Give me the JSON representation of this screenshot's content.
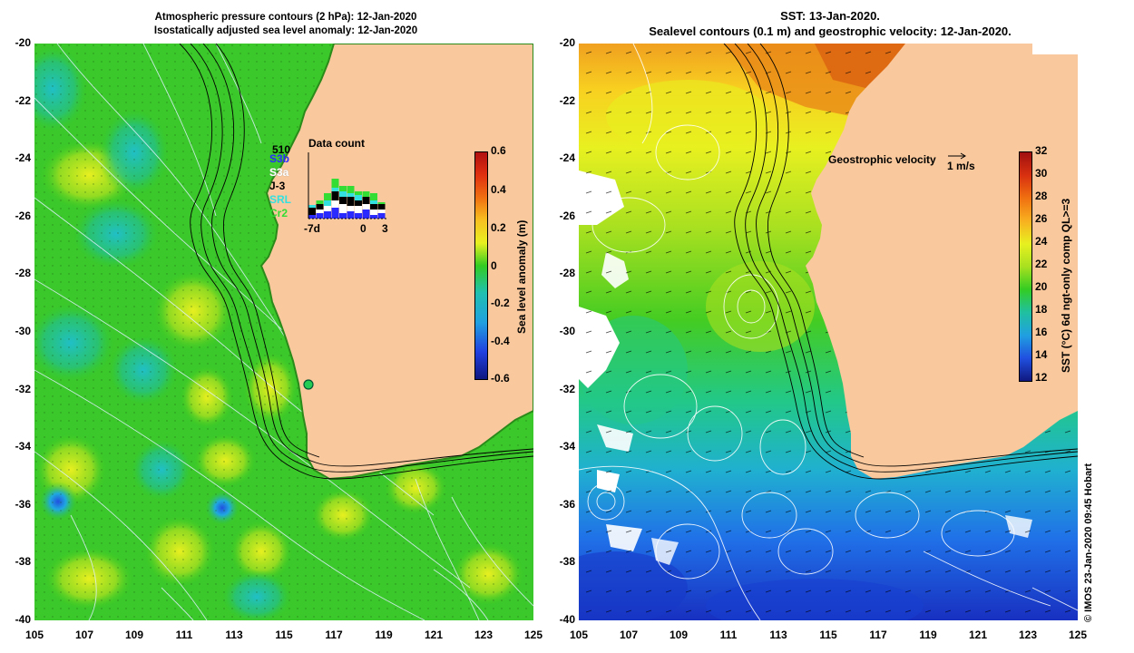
{
  "left_map": {
    "title_line1": "Atmospheric pressure contours (2 hPa): 12-Jan-2020",
    "title_line2": "Isostatically adjusted sea level anomaly: 12-Jan-2020",
    "colorbar_title": "Sea level anomaly (m)",
    "colorbar_ticks": [
      "0.6",
      "0.4",
      "0.2",
      "0",
      "-0.2",
      "-0.4",
      "-0.6"
    ],
    "data_count": {
      "title": "Data count",
      "max_label": "510",
      "x_ticks": [
        "-7d",
        "0",
        "3"
      ],
      "satellites": [
        {
          "name": "S3b",
          "color": "#2a2aff"
        },
        {
          "name": "S3a",
          "color": "#ffffff"
        },
        {
          "name": "J-3",
          "color": "#000000"
        },
        {
          "name": "SRL",
          "color": "#33e0e0"
        },
        {
          "name": "Cr2",
          "color": "#33dd33"
        }
      ]
    }
  },
  "right_map": {
    "title_line1": "SST: 13-Jan-2020.",
    "title_line2": "Sealevel contours (0.1 m) and geostrophic velocity: 12-Jan-2020.",
    "colorbar_title": "SST (°C) 6d ngt-only comp QL>=3",
    "colorbar_ticks": [
      "32",
      "30",
      "28",
      "26",
      "24",
      "22",
      "20",
      "18",
      "16",
      "14",
      "12"
    ],
    "velocity_label": "Geostrophic velocity",
    "velocity_scale": "1 m/s",
    "credit": "© IMOS 23-Jan-2020 09:45 Hobart"
  },
  "axes": {
    "lat_labels": [
      "-20",
      "-22",
      "-24",
      "-26",
      "-28",
      "-30",
      "-32",
      "-34",
      "-36",
      "-38",
      "-40"
    ],
    "lon_labels": [
      "105",
      "107",
      "109",
      "111",
      "113",
      "115",
      "117",
      "119",
      "121",
      "123",
      "125"
    ]
  },
  "colors": {
    "land": "#f9c89c",
    "sla_ocean": "#33cc22",
    "sst_warm": "#e07a10",
    "sst_cool": "#1a4ae0"
  }
}
